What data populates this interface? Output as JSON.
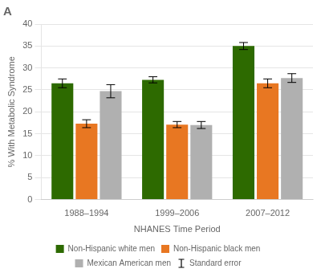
{
  "chart_data": {
    "type": "bar",
    "title": "A",
    "xlabel": "NHANES Time Period",
    "ylabel": "% With Metabolic Syndrome",
    "categories": [
      "1988–1994",
      "1999–2006",
      "2007–2012"
    ],
    "series": [
      {
        "name": "Non-Hispanic white men",
        "color": "#2d6a00",
        "values": [
          26.5,
          27.3,
          35.0
        ],
        "errors": [
          1.0,
          0.7,
          0.8
        ]
      },
      {
        "name": "Non-Hispanic black men",
        "color": "#e87722",
        "values": [
          17.3,
          17.1,
          26.5
        ],
        "errors": [
          0.9,
          0.7,
          1.0
        ]
      },
      {
        "name": "Mexican American men",
        "color": "#b0b0b0",
        "values": [
          24.7,
          17.0,
          27.7
        ],
        "errors": [
          1.5,
          0.8,
          1.0
        ]
      }
    ],
    "error_legend": "Standard error",
    "ylim": [
      0,
      40
    ],
    "yticks": [
      0,
      5,
      10,
      15,
      20,
      25,
      30,
      35,
      40
    ],
    "grid": true,
    "legend": "bottom"
  }
}
